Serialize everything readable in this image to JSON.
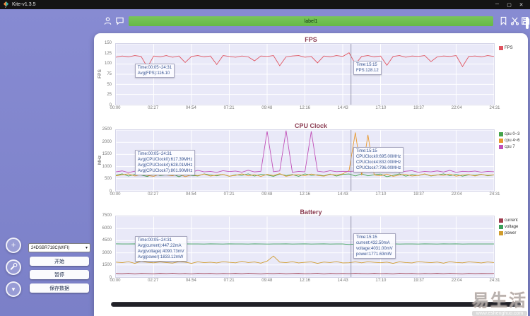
{
  "window": {
    "title": "Kite-v1.3.5",
    "minimize": "─",
    "maximize": "▢",
    "close": "✕"
  },
  "toolbar": {
    "label_value": "label1",
    "left_icons": [
      "user-icon",
      "chat-icon"
    ],
    "right_icons": [
      "bookmark-icon",
      "cut-icon",
      "save-icon"
    ]
  },
  "sidebar": {
    "device_select": "24DSBR718C(WIFI)",
    "device_caret": "▾",
    "fab_plus": "+",
    "fab_arrow": "▼",
    "start_button": "开始",
    "pause_button": "暂停",
    "save_button": "保存数据"
  },
  "watermark": {
    "brand": "易生活",
    "site": "www.eshenghuo.com"
  },
  "chart_data": [
    {
      "type": "line",
      "title": "FPS",
      "ylabel": "FPS",
      "ylim": [
        0,
        150
      ],
      "yticks": [
        0,
        25,
        50,
        75,
        100,
        125,
        150
      ],
      "x_ticklabels": [
        "00:00",
        "02:27",
        "04:54",
        "07:21",
        "09:48",
        "12:16",
        "14:43",
        "17:10",
        "19:37",
        "22:04",
        "24:31"
      ],
      "cursor_time_frac": 0.622,
      "legend": [
        {
          "label": "FPS",
          "color": "#e0535f"
        }
      ],
      "tooltip_left": [
        "Time:00:05~24:31",
        "Avg(FPS):116.10"
      ],
      "tooltip_cursor": [
        "Time:15:15",
        "FPS:128.12"
      ],
      "series": [
        {
          "name": "FPS",
          "color": "#e0535f",
          "values": [
            117,
            120,
            118,
            121,
            119,
            92,
            120,
            118,
            121,
            117,
            120,
            104,
            119,
            121,
            118,
            120,
            99,
            121,
            119,
            117,
            120,
            118,
            108,
            120,
            119,
            121,
            96,
            118,
            120,
            121,
            117,
            119,
            103,
            120,
            118,
            121,
            119,
            128,
            100,
            119,
            121,
            118,
            120,
            97,
            119,
            121,
            117,
            120,
            119,
            121,
            106,
            118,
            120,
            119,
            121,
            94,
            119,
            120,
            118,
            121,
            119
          ]
        }
      ]
    },
    {
      "type": "line",
      "title": "CPU Clock",
      "ylabel": "MHz",
      "ylim": [
        0,
        2500
      ],
      "yticks": [
        0,
        500,
        1000,
        1500,
        2000,
        2500
      ],
      "x_ticklabels": [
        "00:00",
        "02:27",
        "04:54",
        "07:21",
        "09:48",
        "12:16",
        "14:43",
        "17:10",
        "19:37",
        "22:04",
        "24:31"
      ],
      "cursor_time_frac": 0.622,
      "legend": [
        {
          "label": "cpu 0~3",
          "color": "#44a34a"
        },
        {
          "label": "cpu 4~6",
          "color": "#e8992e"
        },
        {
          "label": "cpu 7",
          "color": "#c050b8"
        }
      ],
      "tooltip_left": [
        "Time:00:05~24:31",
        "Avg(CPUClock0):617.39MHz",
        "Avg(CPUClock4):628.01MHz",
        "Avg(CPUClock7):801.90MHz"
      ],
      "tooltip_cursor": [
        "Time:15:15",
        "CPUClock0:695.00MHz",
        "CPUClock4:832.00MHz",
        "CPUClock7:796.00MHz"
      ],
      "series": [
        {
          "name": "cpu 0~3",
          "color": "#44a34a",
          "values": [
            640,
            700,
            610,
            680,
            650,
            590,
            720,
            630,
            660,
            700,
            580,
            690,
            640,
            610,
            700,
            650,
            620,
            680,
            600,
            660,
            640,
            700,
            610,
            680,
            650,
            600,
            690,
            630,
            670,
            600,
            700,
            640,
            660,
            620,
            690,
            610,
            680,
            695,
            615,
            700,
            620,
            660,
            690,
            585,
            640,
            700,
            605,
            670,
            630,
            690,
            615,
            650,
            700,
            625,
            675,
            605,
            660,
            640,
            685,
            620,
            655
          ]
        },
        {
          "name": "cpu 4~6",
          "color": "#e8992e",
          "values": [
            620,
            660,
            700,
            615,
            680,
            640,
            600,
            690,
            650,
            625,
            700,
            585,
            660,
            630,
            690,
            610,
            650,
            680,
            605,
            640,
            700,
            620,
            665,
            595,
            680,
            630,
            710,
            600,
            650,
            670,
            625,
            690,
            640,
            605,
            680,
            650,
            700,
            832,
            2400,
            640,
            2300,
            655,
            620,
            690,
            600,
            650,
            680,
            615,
            640,
            700,
            625,
            660,
            635,
            690,
            605,
            650,
            670,
            615,
            680,
            640,
            660
          ]
        },
        {
          "name": "cpu 7",
          "color": "#c050b8",
          "values": [
            780,
            820,
            755,
            810,
            840,
            765,
            800,
            790,
            830,
            750,
            805,
            825,
            770,
            845,
            785,
            800,
            760,
            830,
            795,
            815,
            770,
            850,
            780,
            805,
            2450,
            790,
            820,
            2480,
            765,
            800,
            785,
            2450,
            810,
            775,
            830,
            790,
            805,
            796,
            820,
            780,
            840,
            770,
            800,
            790,
            825,
            755,
            810,
            830,
            765,
            800,
            785,
            820,
            775,
            845,
            760,
            805,
            790,
            815,
            770,
            800,
            788
          ]
        }
      ]
    },
    {
      "type": "line",
      "title": "Battery",
      "ylabel": "",
      "ylim": [
        0,
        7500
      ],
      "yticks": [
        0,
        1500,
        3000,
        4500,
        6000,
        7500
      ],
      "x_ticklabels": [
        "00:00",
        "02:27",
        "04:54",
        "07:21",
        "09:48",
        "12:16",
        "14:43",
        "17:10",
        "19:37",
        "22:04",
        "24:31"
      ],
      "cursor_time_frac": 0.622,
      "legend": [
        {
          "label": "current",
          "color": "#9e3a4e"
        },
        {
          "label": "voltage",
          "color": "#3aa05a"
        },
        {
          "label": "power",
          "color": "#d09c2c"
        }
      ],
      "tooltip_left": [
        "Time:00:05~24:31",
        "Avg(current):447.22mA",
        "Avg(voltage):4090.73mV",
        "Avg(power):1833.12mW"
      ],
      "tooltip_cursor": [
        "Time:15:15",
        "current:432.50mA",
        "voltage:4031.00mV",
        "power:1771.63mW"
      ],
      "series": [
        {
          "name": "current",
          "color": "#9e3a4e",
          "values": [
            450,
            420,
            480,
            400,
            460,
            440,
            410,
            470,
            430,
            490,
            420,
            450,
            400,
            480,
            440,
            460,
            410,
            450,
            430,
            470,
            420,
            490,
            440,
            400,
            460,
            430,
            480,
            410,
            450,
            470,
            420,
            440,
            490,
            400,
            460,
            430,
            450,
            432,
            480,
            440,
            420,
            470,
            430,
            450,
            400,
            490,
            440,
            460,
            410,
            450,
            430,
            470,
            420,
            480,
            440,
            400,
            460,
            430,
            450,
            440,
            455
          ]
        },
        {
          "name": "voltage",
          "color": "#3aa05a",
          "values": [
            4100,
            4095,
            4088,
            4102,
            4092,
            4085,
            4098,
            4090,
            4083,
            4096,
            4089,
            4101,
            4087,
            4094,
            4080,
            4097,
            4091,
            4084,
            4099,
            4088,
            4093,
            4086,
            4100,
            4090,
            4082,
            4095,
            4089,
            4102,
            4085,
            4092,
            4097,
            4083,
            4090,
            4096,
            4081,
            4094,
            4088,
            4031,
            4086,
            4093,
            4099,
            4084,
            4091,
            4087,
            4100,
            4082,
            4095,
            4090,
            4085,
            4098,
            4089,
            4083,
            4096,
            4091,
            4100,
            4086,
            4092,
            4087,
            4094,
            4089,
            4095
          ]
        },
        {
          "name": "power",
          "color": "#d09c2c",
          "values": [
            1850,
            1780,
            1900,
            1700,
            1950,
            1820,
            1760,
            1880,
            1800,
            1730,
            1920,
            1850,
            1700,
            1890,
            1780,
            1830,
            1750,
            1900,
            1820,
            1760,
            1950,
            1800,
            1870,
            1720,
            1980,
            2600,
            1850,
            1780,
            1900,
            1750,
            1820,
            1880,
            1700,
            1860,
            1790,
            1920,
            1750,
            1772,
            1880,
            1760,
            1900,
            1820,
            1770,
            1850,
            1700,
            1890,
            1800,
            1750,
            1920,
            1830,
            1780,
            1860,
            1720,
            1900,
            1810,
            1760,
            1880,
            1820,
            1750,
            1870,
            1800
          ]
        }
      ]
    }
  ]
}
